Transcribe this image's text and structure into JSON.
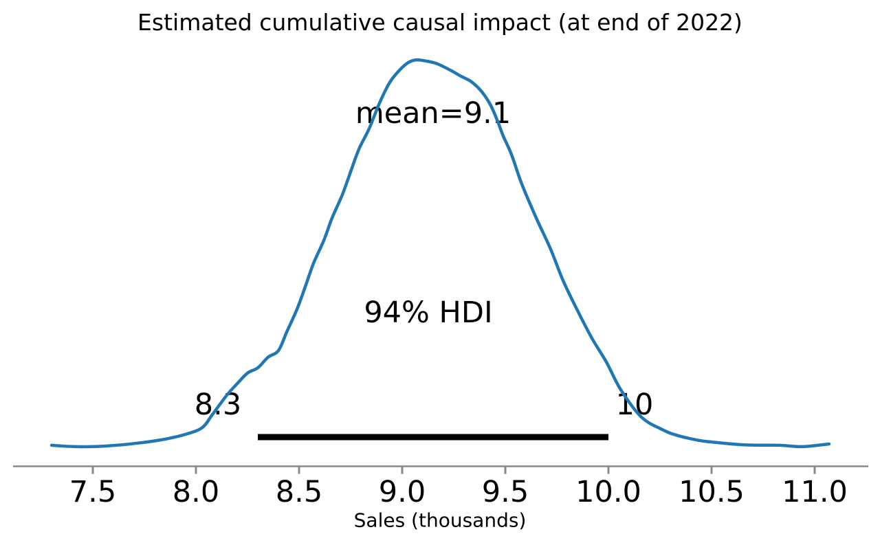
{
  "chart_data": {
    "type": "line",
    "subtype": "posterior-kde-density",
    "title": "Estimated cumulative causal impact (at end of 2022)",
    "xlabel": "Sales (thousands)",
    "x_ticks": [
      "7.5",
      "8.0",
      "8.5",
      "9.0",
      "9.5",
      "10.0",
      "10.5",
      "11.0"
    ],
    "xlim": [
      7.12,
      11.32
    ],
    "grid": false,
    "legend": false,
    "mean": 9.1,
    "hdi_prob": 0.94,
    "hdi_interval": [
      8.3,
      10
    ],
    "annotations": {
      "mean_label": "mean=9.1",
      "hdi_label": "94% HDI",
      "hdi_lower_label": "8.3",
      "hdi_upper_label": "10"
    },
    "colors": {
      "curve": "#1f77b4",
      "hdi_bar": "#000000",
      "axis": "#888888",
      "text": "#000000"
    },
    "density": {
      "x": [
        7.3,
        7.42,
        7.55,
        7.72,
        7.85,
        7.95,
        8.03,
        8.08,
        8.15,
        8.2,
        8.25,
        8.3,
        8.35,
        8.4,
        8.44,
        8.49,
        8.53,
        8.57,
        8.62,
        8.66,
        8.71,
        8.75,
        8.79,
        8.84,
        8.89,
        8.94,
        8.99,
        9.03,
        9.07,
        9.12,
        9.17,
        9.24,
        9.28,
        9.33,
        9.37,
        9.4,
        9.43,
        9.46,
        9.49,
        9.53,
        9.58,
        9.65,
        9.72,
        9.78,
        9.85,
        9.92,
        9.99,
        10.06,
        10.16,
        10.26,
        10.33,
        10.43,
        10.49,
        10.66,
        10.83,
        10.94,
        11.07
      ],
      "y": [
        0.011,
        0.008,
        0.009,
        0.016,
        0.025,
        0.036,
        0.051,
        0.081,
        0.125,
        0.151,
        0.175,
        0.187,
        0.211,
        0.226,
        0.268,
        0.32,
        0.371,
        0.424,
        0.476,
        0.527,
        0.58,
        0.632,
        0.683,
        0.73,
        0.788,
        0.835,
        0.864,
        0.88,
        0.886,
        0.883,
        0.877,
        0.861,
        0.85,
        0.838,
        0.822,
        0.805,
        0.782,
        0.75,
        0.713,
        0.671,
        0.604,
        0.527,
        0.456,
        0.385,
        0.317,
        0.254,
        0.2,
        0.137,
        0.075,
        0.047,
        0.034,
        0.023,
        0.019,
        0.012,
        0.011,
        0.008,
        0.014
      ]
    }
  }
}
